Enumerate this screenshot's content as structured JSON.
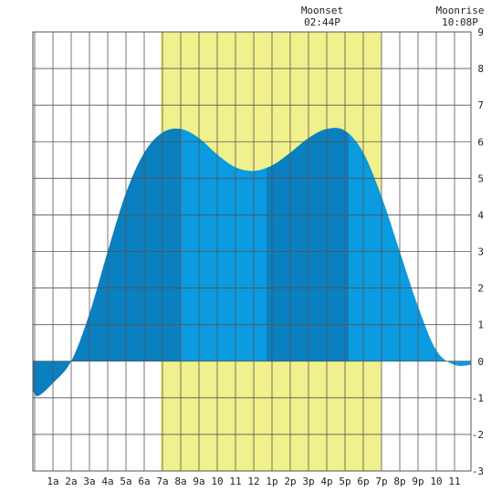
{
  "chart_data": {
    "type": "area",
    "x_unit": "hour of day",
    "x_ticks": [
      {
        "x": 1,
        "label": "1a"
      },
      {
        "x": 2,
        "label": "2a"
      },
      {
        "x": 3,
        "label": "3a"
      },
      {
        "x": 4,
        "label": "4a"
      },
      {
        "x": 5,
        "label": "5a"
      },
      {
        "x": 6,
        "label": "6a"
      },
      {
        "x": 7,
        "label": "7a"
      },
      {
        "x": 8,
        "label": "8a"
      },
      {
        "x": 9,
        "label": "9a"
      },
      {
        "x": 10,
        "label": "10"
      },
      {
        "x": 11,
        "label": "11"
      },
      {
        "x": 12,
        "label": "12"
      },
      {
        "x": 13,
        "label": "1p"
      },
      {
        "x": 14,
        "label": "2p"
      },
      {
        "x": 15,
        "label": "3p"
      },
      {
        "x": 16,
        "label": "4p"
      },
      {
        "x": 17,
        "label": "5p"
      },
      {
        "x": 18,
        "label": "6p"
      },
      {
        "x": 19,
        "label": "7p"
      },
      {
        "x": 20,
        "label": "8p"
      },
      {
        "x": 21,
        "label": "9p"
      },
      {
        "x": 22,
        "label": "10"
      },
      {
        "x": 23,
        "label": "11"
      }
    ],
    "y_ticks": [
      -3,
      -2,
      -1,
      0,
      1,
      2,
      3,
      4,
      5,
      6,
      7,
      8,
      9
    ],
    "xlim": [
      -0.1,
      23.9
    ],
    "ylim": [
      -3,
      9
    ],
    "grid": true,
    "daylight_band": {
      "start": 6.9,
      "end": 19.0,
      "color": "#f0f08c"
    },
    "tide_curve": [
      [
        -0.1,
        -0.8
      ],
      [
        0.2,
        -0.95
      ],
      [
        1.0,
        -0.6
      ],
      [
        2.0,
        0.0
      ],
      [
        3.0,
        1.3
      ],
      [
        4.0,
        3.0
      ],
      [
        5.0,
        4.6
      ],
      [
        6.0,
        5.7
      ],
      [
        7.0,
        6.25
      ],
      [
        8.0,
        6.35
      ],
      [
        9.0,
        6.1
      ],
      [
        10.0,
        5.65
      ],
      [
        11.0,
        5.3
      ],
      [
        12.0,
        5.2
      ],
      [
        13.0,
        5.35
      ],
      [
        14.0,
        5.7
      ],
      [
        15.0,
        6.1
      ],
      [
        16.0,
        6.35
      ],
      [
        17.0,
        6.3
      ],
      [
        18.0,
        5.7
      ],
      [
        19.0,
        4.5
      ],
      [
        20.0,
        3.0
      ],
      [
        21.0,
        1.5
      ],
      [
        22.0,
        0.3
      ],
      [
        23.0,
        -0.1
      ],
      [
        23.9,
        -0.1
      ]
    ],
    "shade_bands": [
      {
        "start": -0.1,
        "end": 8.0,
        "color": "#0a80c0"
      },
      {
        "start": 8.0,
        "end": 12.7,
        "color": "#0a9be0"
      },
      {
        "start": 12.7,
        "end": 17.2,
        "color": "#0a80c0"
      },
      {
        "start": 17.2,
        "end": 23.9,
        "color": "#0a9be0"
      }
    ],
    "annotations": [
      {
        "x": 15.75,
        "title": "Moonset",
        "time": "02:44P"
      },
      {
        "x": 23.3,
        "title": "Moonrise",
        "time": "10:08P"
      }
    ]
  }
}
